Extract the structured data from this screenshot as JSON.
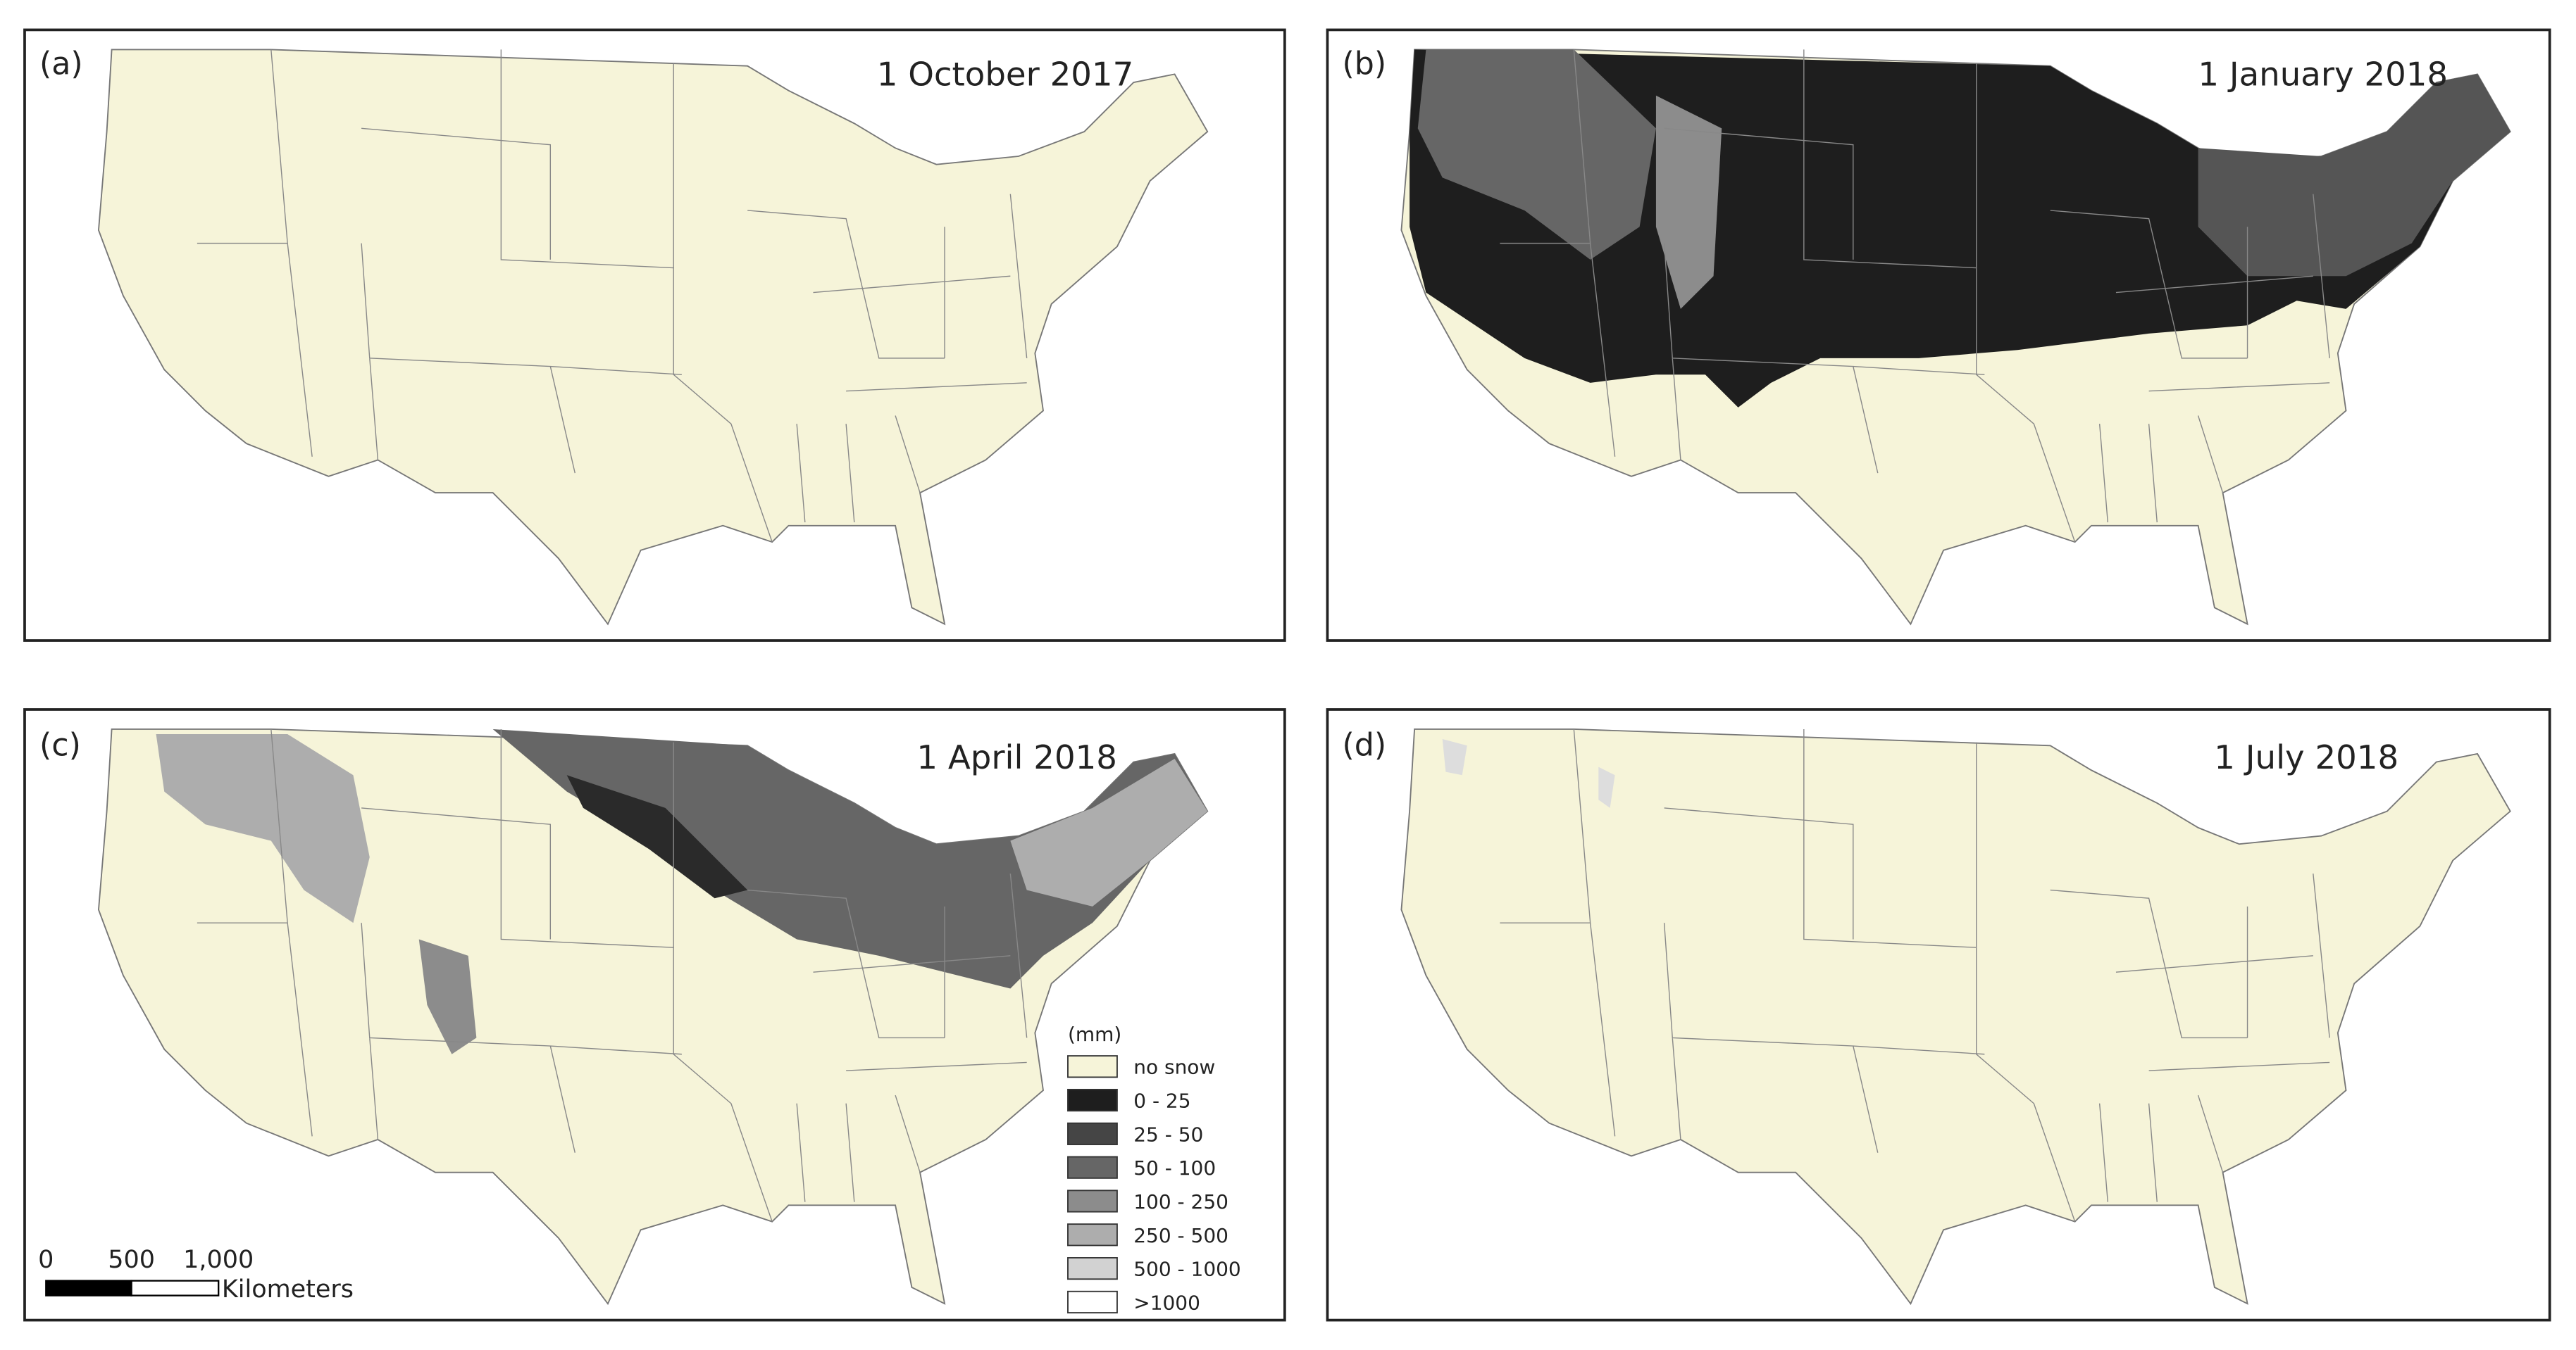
{
  "panels": [
    {
      "label": "(a)",
      "date": "1 October 2017"
    },
    {
      "label": "(b)",
      "date": "1 January 2018"
    },
    {
      "label": "(c)",
      "date": "1 April 2018"
    },
    {
      "label": "(d)",
      "date": "1 July 2018"
    }
  ],
  "legend": {
    "title": "(mm)",
    "items": [
      {
        "label": "no snow",
        "color": "#f6f4d9"
      },
      {
        "label": "0 - 25",
        "color": "#1e1e1e"
      },
      {
        "label": "25 - 50",
        "color": "#454545"
      },
      {
        "label": "50 - 100",
        "color": "#666666"
      },
      {
        "label": "100 - 250",
        "color": "#8c8c8c"
      },
      {
        "label": "250 - 500",
        "color": "#adadad"
      },
      {
        "label": "500 - 1000",
        "color": "#d2d2d2"
      },
      {
        "label": ">1000",
        "color": "#ffffff"
      }
    ]
  },
  "scale_bar": {
    "ticks": [
      "0",
      "500",
      "1,000"
    ],
    "unit": "Kilometers"
  }
}
